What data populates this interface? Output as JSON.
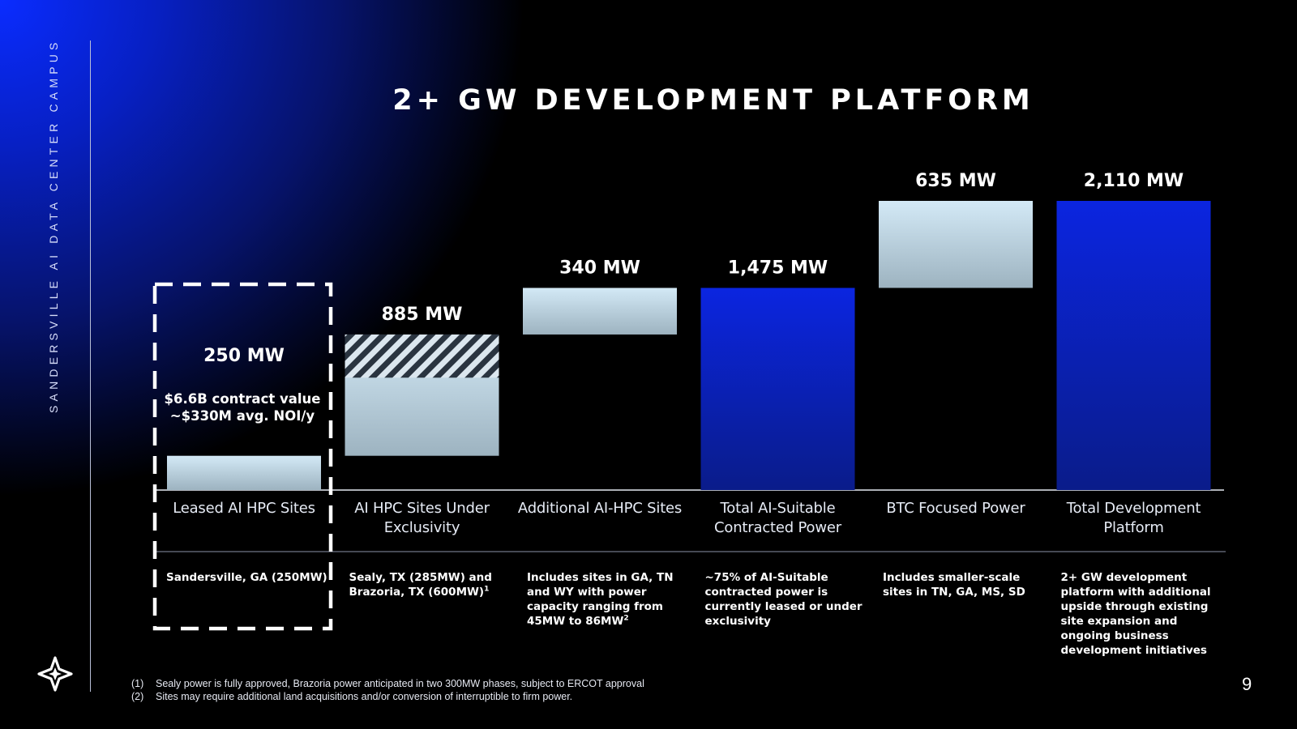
{
  "side_title": "SANDERSVILLE AI DATA CENTER CAMPUS",
  "title": "2+ GW DEVELOPMENT PLATFORM",
  "page_number": "9",
  "logo_icon": "four-point-star-icon",
  "colors": {
    "bar_light": "#d3e9f6",
    "bar_light_bottom": "#9db3c0",
    "bar_blue": "#0b25e0",
    "bar_blue_bottom": "#0a1c8a",
    "highlight_border": "#ffffff"
  },
  "chart_data": {
    "type": "bar",
    "subtype": "waterfall",
    "unit": "MW",
    "categories": [
      "Leased AI HPC Sites",
      "AI HPC Sites Under Exclusivity",
      "Additional AI-HPC Sites",
      "Total AI-Suitable Contracted Power",
      "BTC Focused Power",
      "Total Development Platform"
    ],
    "values": [
      250,
      885,
      340,
      1475,
      635,
      2110
    ],
    "labels": [
      "250 MW",
      "885 MW",
      "340 MW",
      "1,475 MW",
      "635 MW",
      "2,110 MW"
    ],
    "bar_kind": [
      "increment",
      "increment",
      "increment",
      "total",
      "increment",
      "total"
    ],
    "hatched_portion_mw": 315,
    "highlighted_category": "Leased AI HPC Sites",
    "highlight_note_line1": "$6.6B contract value",
    "highlight_note_line2": "~$330M avg. NOI/y",
    "descriptions": [
      {
        "text": "Sandersville, GA (250MW)",
        "sup": ""
      },
      {
        "text": "Sealy, TX (285MW) and\nBrazoria, TX (600MW)",
        "sup": "1"
      },
      {
        "text": "Includes sites in GA, TN\nand WY with power\ncapacity ranging from\n45MW to 86MW",
        "sup": "2"
      },
      {
        "text": "~75% of AI-Suitable\ncontracted power is\ncurrently leased or under\nexclusivity",
        "sup": ""
      },
      {
        "text": "Includes smaller-scale\nsites in TN, GA, MS, SD",
        "sup": ""
      },
      {
        "text": "2+ GW development\nplatform with additional\nupside through existing\nsite expansion and\nongoing business\ndevelopment initiatives",
        "sup": ""
      }
    ]
  },
  "footnotes": [
    {
      "num": "(1)",
      "text": "Sealy power is fully approved, Brazoria power anticipated in two 300MW phases, subject to ERCOT approval"
    },
    {
      "num": "(2)",
      "text": "Sites may require additional land acquisitions and/or conversion of interruptible to firm power."
    }
  ]
}
